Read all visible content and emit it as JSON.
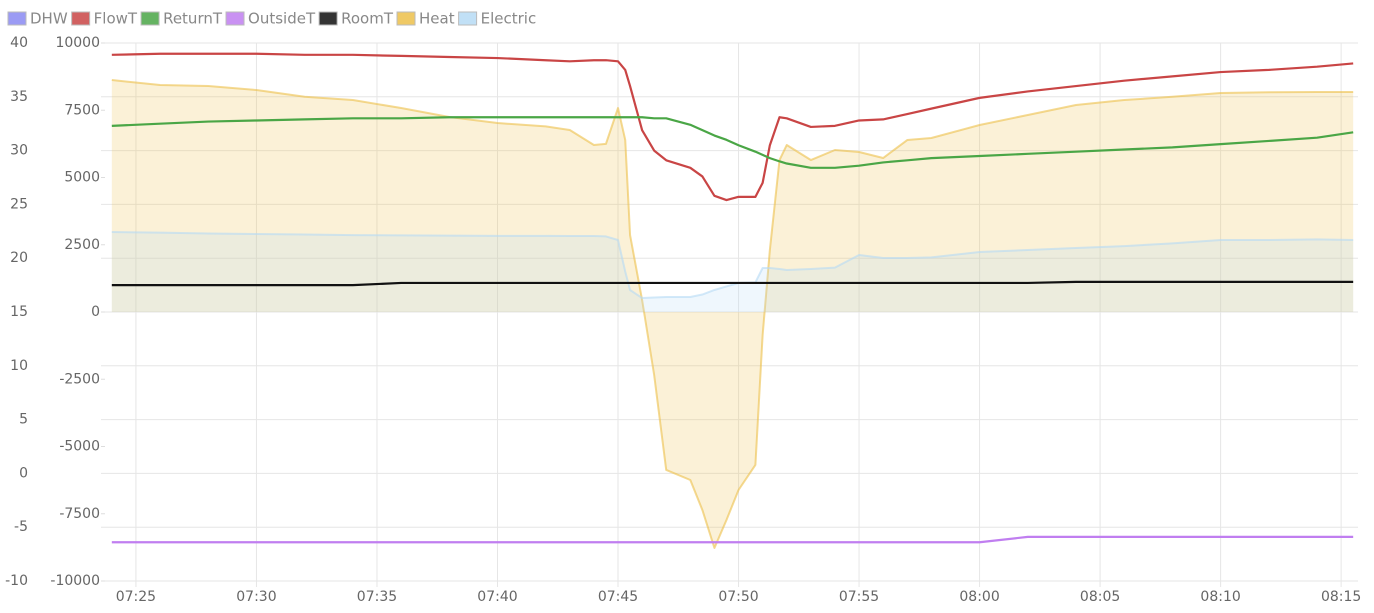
{
  "chart_data": {
    "type": "line",
    "legend": "top-left",
    "grid": true,
    "x": [
      444,
      446,
      448,
      450,
      452,
      454,
      456,
      458,
      460,
      462,
      463,
      464,
      464.5,
      465,
      465.3,
      465.5,
      466,
      466.5,
      467,
      468,
      468.5,
      469,
      469.5,
      470,
      470.7,
      471,
      471.3,
      471.7,
      472,
      473,
      474,
      475,
      476,
      477,
      478,
      480,
      482,
      484,
      486,
      488,
      490,
      492,
      494,
      495.5
    ],
    "xlim": [
      443.8,
      495.7
    ],
    "xticks": [
      {
        "value": 445,
        "label": "07:25"
      },
      {
        "value": 450,
        "label": "07:30"
      },
      {
        "value": 455,
        "label": "07:35"
      },
      {
        "value": 460,
        "label": "07:40"
      },
      {
        "value": 465,
        "label": "07:45"
      },
      {
        "value": 470,
        "label": "07:50"
      },
      {
        "value": 475,
        "label": "07:55"
      },
      {
        "value": 480,
        "label": "08:00"
      },
      {
        "value": 485,
        "label": "08:05"
      },
      {
        "value": 490,
        "label": "08:10"
      },
      {
        "value": 495,
        "label": "08:15"
      }
    ],
    "ylim": [
      -10,
      40
    ],
    "yticks": [
      -10,
      -5,
      0,
      5,
      10,
      15,
      20,
      25,
      30,
      35,
      40
    ],
    "y2lim": [
      -10000,
      10000
    ],
    "y2ticks": [
      -10000,
      -7500,
      -5000,
      -2500,
      0,
      2500,
      5000,
      7500,
      10000
    ],
    "series": [
      {
        "name": "DHW",
        "color": "#8a8af2",
        "values": [
          null,
          null,
          null,
          null,
          null,
          null,
          null,
          null,
          null,
          null,
          null,
          null,
          null,
          null,
          null,
          null,
          null,
          null,
          null,
          null,
          null,
          null,
          null,
          null,
          null,
          null,
          null,
          null,
          null,
          null,
          null,
          null,
          null,
          null,
          null,
          null,
          null,
          null,
          null,
          null,
          null,
          null,
          null,
          null
        ]
      },
      {
        "name": "FlowT",
        "color": "#c94545",
        "values": [
          38.9,
          39,
          39,
          39,
          38.9,
          38.9,
          38.8,
          38.7,
          38.6,
          38.4,
          38.3,
          38.4,
          38.4,
          38.3,
          37.5,
          36,
          31.9,
          30,
          29.1,
          28.4,
          27.6,
          25.8,
          25.4,
          25.7,
          25.7,
          27,
          30.5,
          33.1,
          33,
          32.2,
          32.3,
          32.8,
          32.9,
          33.4,
          33.9,
          34.9,
          35.5,
          36,
          36.5,
          36.9,
          37.3,
          37.5,
          37.8,
          38.1
        ]
      },
      {
        "name": "ReturnT",
        "color": "#4aa646",
        "values": [
          32.3,
          32.5,
          32.7,
          32.8,
          32.9,
          33,
          33,
          33.1,
          33.1,
          33.1,
          33.1,
          33.1,
          33.1,
          33.1,
          33.1,
          33.1,
          33.1,
          33,
          33,
          32.4,
          31.9,
          31.4,
          31,
          30.5,
          29.9,
          29.6,
          29.3,
          29,
          28.8,
          28.4,
          28.4,
          28.6,
          28.9,
          29.1,
          29.3,
          29.5,
          29.7,
          29.9,
          30.1,
          30.3,
          30.6,
          30.9,
          31.2,
          31.7
        ]
      },
      {
        "name": "OutsideT",
        "color": "#c07ef0",
        "values": [
          -6.4,
          -6.4,
          -6.4,
          -6.4,
          -6.4,
          -6.4,
          -6.4,
          -6.4,
          -6.4,
          -6.4,
          -6.4,
          -6.4,
          -6.4,
          -6.4,
          -6.4,
          -6.4,
          -6.4,
          -6.4,
          -6.4,
          -6.4,
          -6.4,
          -6.4,
          -6.4,
          -6.4,
          -6.4,
          -6.4,
          -6.4,
          -6.4,
          -6.4,
          -6.4,
          -6.4,
          -6.4,
          -6.4,
          -6.4,
          -6.4,
          -6.4,
          -5.9,
          -5.9,
          -5.9,
          -5.9,
          -5.9,
          -5.9,
          -5.9,
          -5.9
        ]
      },
      {
        "name": "RoomT",
        "color": "#111111",
        "values": [
          17.5,
          17.5,
          17.5,
          17.5,
          17.5,
          17.5,
          17.7,
          17.7,
          17.7,
          17.7,
          17.7,
          17.7,
          17.7,
          17.7,
          17.7,
          17.7,
          17.7,
          17.7,
          17.7,
          17.7,
          17.7,
          17.7,
          17.7,
          17.7,
          17.7,
          17.7,
          17.7,
          17.7,
          17.7,
          17.7,
          17.7,
          17.7,
          17.7,
          17.7,
          17.7,
          17.7,
          17.7,
          17.8,
          17.8,
          17.8,
          17.8,
          17.8,
          17.8,
          17.8
        ]
      },
      {
        "name": "Heat",
        "color": "#ecc04a",
        "axis": "y2",
        "area": true,
        "values": [
          8624,
          8438,
          8400,
          8252,
          8000,
          7880,
          7583,
          7249,
          7025,
          6900,
          6765,
          6207,
          6250,
          7583,
          6393,
          2862,
          446,
          -2342,
          -5873,
          -6245,
          -7360,
          -8773,
          -7732,
          -6617,
          -5687,
          -855,
          2305,
          5650,
          6207,
          5650,
          6022,
          5947,
          5724,
          6393,
          6468,
          6951,
          7323,
          7694,
          7880,
          8000,
          8140,
          8170,
          8177,
          8177
        ]
      },
      {
        "name": "Electric",
        "color": "#b6daf5",
        "axis": "y2",
        "area": true,
        "values": [
          2974,
          2950,
          2920,
          2900,
          2880,
          2860,
          2850,
          2840,
          2830,
          2830,
          2825,
          2825,
          2810,
          2676,
          1500,
          818,
          520,
          540,
          558,
          558,
          650,
          818,
          950,
          1078,
          1100,
          1636,
          1636,
          1600,
          1561,
          1600,
          1650,
          2119,
          2007,
          2007,
          2030,
          2230,
          2305,
          2379,
          2450,
          2550,
          2676,
          2676,
          2700,
          2676
        ]
      }
    ]
  }
}
